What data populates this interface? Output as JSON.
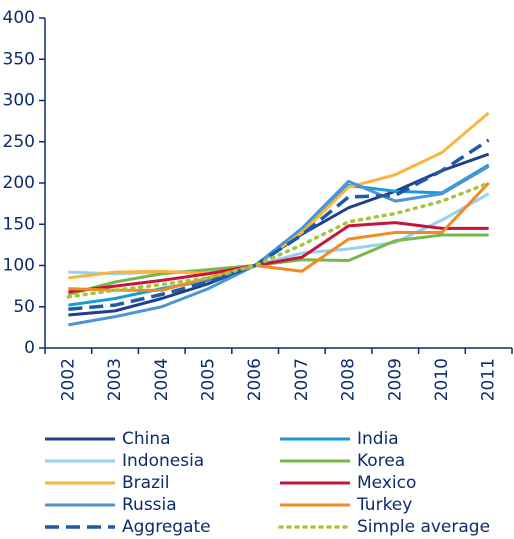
{
  "chart_data": {
    "type": "line",
    "categories": [
      "2002",
      "2003",
      "2004",
      "2005",
      "2006",
      "2007",
      "2008",
      "2009",
      "2010",
      "2011"
    ],
    "ylim": [
      0,
      400
    ],
    "yticks": [
      0,
      50,
      100,
      150,
      200,
      250,
      300,
      350,
      400
    ],
    "legend": "bottom",
    "series": [
      {
        "name": "China",
        "color": "#1f3f8a",
        "style": "solid",
        "values": [
          40,
          45,
          60,
          78,
          100,
          138,
          170,
          190,
          215,
          235
        ]
      },
      {
        "name": "India",
        "color": "#1a9ad6",
        "style": "solid",
        "values": [
          52,
          60,
          72,
          82,
          100,
          140,
          197,
          190,
          188,
          222
        ]
      },
      {
        "name": "Indonesia",
        "color": "#93d2f2",
        "style": "solid",
        "values": [
          92,
          90,
          92,
          93,
          100,
          115,
          120,
          128,
          155,
          187
        ]
      },
      {
        "name": "Korea",
        "color": "#7ab648",
        "style": "solid",
        "values": [
          65,
          80,
          90,
          95,
          100,
          107,
          106,
          130,
          137,
          137
        ]
      },
      {
        "name": "Brazil",
        "color": "#fbb440",
        "style": "solid",
        "values": [
          85,
          92,
          93,
          90,
          100,
          140,
          195,
          210,
          237,
          285
        ]
      },
      {
        "name": "Mexico",
        "color": "#c8143c",
        "style": "solid",
        "values": [
          68,
          75,
          82,
          90,
          100,
          110,
          148,
          152,
          145,
          145
        ]
      },
      {
        "name": "Russia",
        "color": "#4b95d6",
        "style": "solid",
        "values": [
          28,
          38,
          50,
          72,
          100,
          145,
          202,
          178,
          187,
          220
        ]
      },
      {
        "name": "Turkey",
        "color": "#f08a24",
        "style": "solid",
        "values": [
          72,
          70,
          70,
          85,
          100,
          93,
          132,
          140,
          140,
          200
        ]
      },
      {
        "name": "Aggregate",
        "color": "#1f5aa6",
        "style": "dashed",
        "values": [
          47,
          52,
          65,
          80,
          100,
          137,
          183,
          185,
          215,
          252
        ]
      },
      {
        "name": "Simple average",
        "color": "#a8c43c",
        "style": "dotted",
        "values": [
          62,
          70,
          77,
          85,
          100,
          125,
          153,
          163,
          178,
          200
        ]
      }
    ]
  }
}
